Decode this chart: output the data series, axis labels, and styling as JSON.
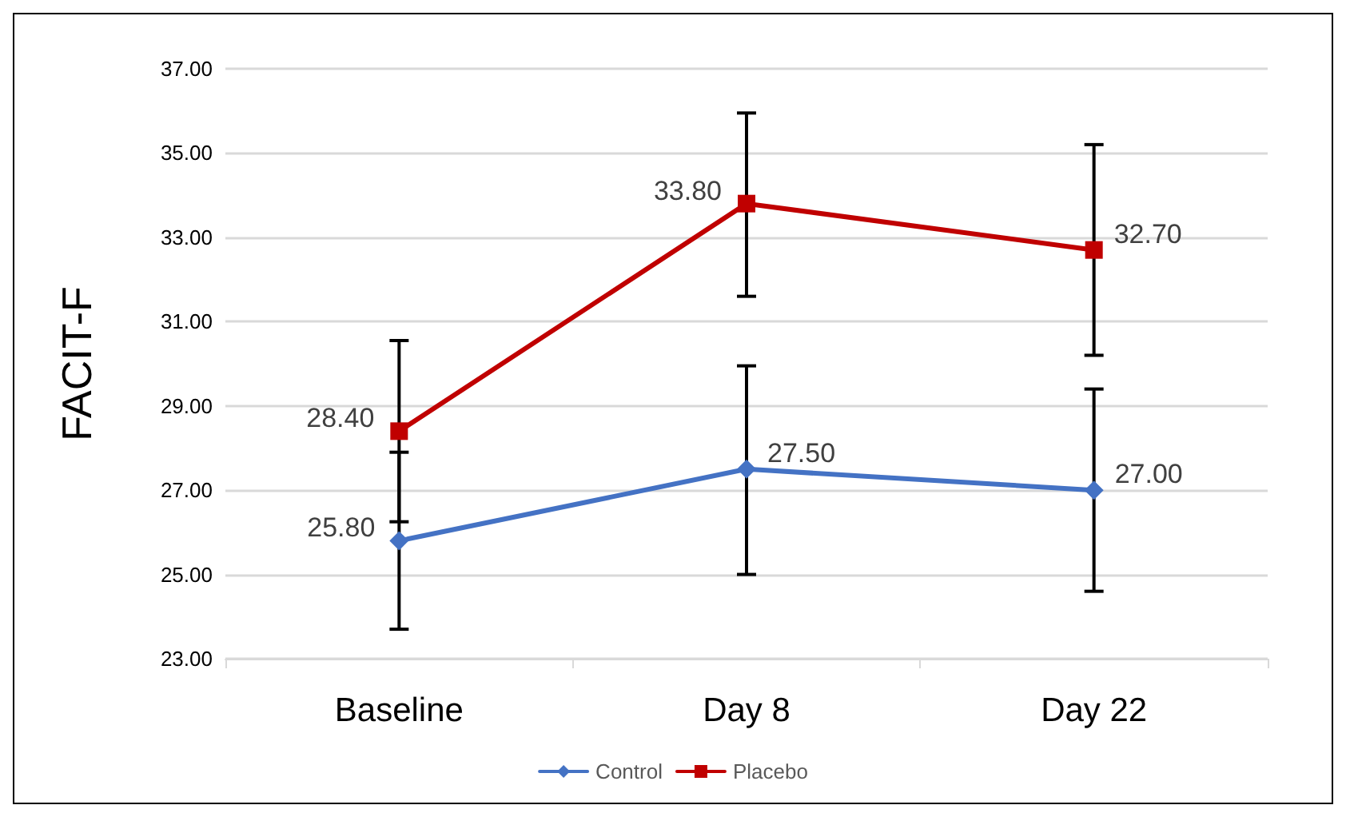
{
  "chart_data": {
    "type": "line",
    "ylabel": "FACIT-F",
    "categories": [
      "Baseline",
      "Day 8",
      "Day 22"
    ],
    "series": [
      {
        "name": "Control",
        "color": "#4472c4",
        "marker": "diamond",
        "values": [
          25.8,
          27.5,
          27.0
        ],
        "value_labels": [
          "25.80",
          "27.50",
          "27.00"
        ],
        "errors": [
          [
            23.7,
            27.9
          ],
          [
            25.0,
            29.95
          ],
          [
            24.6,
            29.4
          ]
        ]
      },
      {
        "name": "Placebo",
        "color": "#c00000",
        "marker": "square",
        "values": [
          28.4,
          33.8,
          32.7
        ],
        "value_labels": [
          "28.40",
          "33.80",
          "32.70"
        ],
        "errors": [
          [
            26.25,
            30.55
          ],
          [
            31.6,
            35.95
          ],
          [
            30.2,
            35.2
          ]
        ]
      }
    ],
    "ylim": [
      23,
      37
    ],
    "yticks": [
      {
        "value": 23,
        "label": "23.00"
      },
      {
        "value": 25,
        "label": "25.00"
      },
      {
        "value": 27,
        "label": "27.00"
      },
      {
        "value": 29,
        "label": "29.00"
      },
      {
        "value": 31,
        "label": "31.00"
      },
      {
        "value": 33,
        "label": "33.00"
      },
      {
        "value": 35,
        "label": "35.00"
      },
      {
        "value": 37,
        "label": "37.00"
      }
    ],
    "grid": "y",
    "legend": "bottom",
    "line_style": "solid"
  }
}
